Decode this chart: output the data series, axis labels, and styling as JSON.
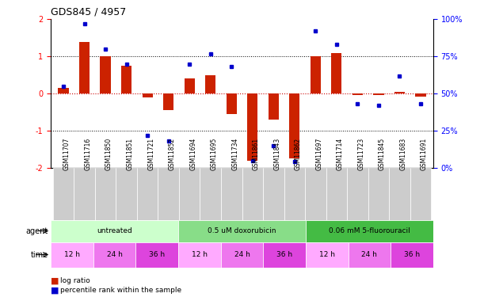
{
  "title": "GDS845 / 4957",
  "samples": [
    "GSM11707",
    "GSM11716",
    "GSM11850",
    "GSM11851",
    "GSM11721",
    "GSM11852",
    "GSM11694",
    "GSM11695",
    "GSM11734",
    "GSM11861",
    "GSM11843",
    "GSM11862",
    "GSM11697",
    "GSM11714",
    "GSM11723",
    "GSM11845",
    "GSM11683",
    "GSM11691"
  ],
  "log_ratio": [
    0.15,
    1.4,
    1.0,
    0.75,
    -0.1,
    -0.45,
    0.4,
    0.5,
    -0.55,
    -1.8,
    -0.7,
    -1.75,
    1.0,
    1.1,
    -0.05,
    -0.05,
    0.05,
    -0.08
  ],
  "percentile": [
    55,
    97,
    80,
    70,
    22,
    18,
    70,
    77,
    68,
    5,
    15,
    4,
    92,
    83,
    43,
    42,
    62,
    43
  ],
  "agents": [
    {
      "label": "untreated",
      "start": 0,
      "end": 6,
      "color": "#ccffcc"
    },
    {
      "label": "0.5 uM doxorubicin",
      "start": 6,
      "end": 12,
      "color": "#88dd88"
    },
    {
      "label": "0.06 mM 5-fluorouracil",
      "start": 12,
      "end": 18,
      "color": "#44bb44"
    }
  ],
  "times": [
    {
      "label": "12 h",
      "start": 0,
      "end": 2,
      "color": "#ffaaff"
    },
    {
      "label": "24 h",
      "start": 2,
      "end": 4,
      "color": "#ee77ee"
    },
    {
      "label": "36 h",
      "start": 4,
      "end": 6,
      "color": "#dd44dd"
    },
    {
      "label": "12 h",
      "start": 6,
      "end": 8,
      "color": "#ffaaff"
    },
    {
      "label": "24 h",
      "start": 8,
      "end": 10,
      "color": "#ee77ee"
    },
    {
      "label": "36 h",
      "start": 10,
      "end": 12,
      "color": "#dd44dd"
    },
    {
      "label": "12 h",
      "start": 12,
      "end": 14,
      "color": "#ffaaff"
    },
    {
      "label": "24 h",
      "start": 14,
      "end": 16,
      "color": "#ee77ee"
    },
    {
      "label": "36 h",
      "start": 16,
      "end": 18,
      "color": "#dd44dd"
    }
  ],
  "bar_color": "#cc2200",
  "dot_color": "#0000cc",
  "ylim_left": [
    -2,
    2
  ],
  "ylim_right": [
    0,
    100
  ],
  "yticks_left": [
    -2,
    -1,
    0,
    1,
    2
  ],
  "yticks_right": [
    0,
    25,
    50,
    75,
    100
  ],
  "ytick_labels_right": [
    "0%",
    "25%",
    "50%",
    "75%",
    "100%"
  ],
  "bg_color": "#ffffff",
  "sample_bg": "#cccccc"
}
